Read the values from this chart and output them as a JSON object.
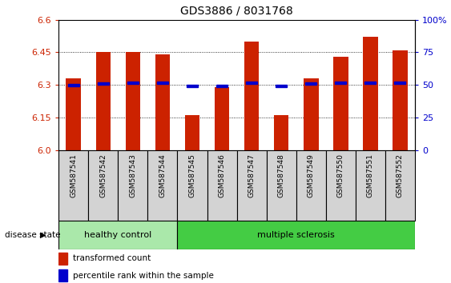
{
  "title": "GDS3886 / 8031768",
  "samples": [
    "GSM587541",
    "GSM587542",
    "GSM587543",
    "GSM587544",
    "GSM587545",
    "GSM587546",
    "GSM587547",
    "GSM587548",
    "GSM587549",
    "GSM587550",
    "GSM587551",
    "GSM587552"
  ],
  "red_values": [
    6.33,
    6.45,
    6.45,
    6.44,
    6.16,
    6.29,
    6.5,
    6.16,
    6.33,
    6.43,
    6.52,
    6.46
  ],
  "blue_values": [
    6.3,
    6.305,
    6.31,
    6.31,
    6.295,
    6.295,
    6.31,
    6.295,
    6.305,
    6.31,
    6.31,
    6.31
  ],
  "y_min": 6.0,
  "y_max": 6.6,
  "y_ticks": [
    6.0,
    6.15,
    6.3,
    6.45,
    6.6
  ],
  "y_right_ticks": [
    0,
    25,
    50,
    75,
    100
  ],
  "y_right_labels": [
    "0",
    "25",
    "50",
    "75",
    "100%"
  ],
  "healthy_count": 4,
  "healthy_label": "healthy control",
  "ms_label": "multiple sclerosis",
  "disease_state_label": "disease state",
  "legend_red": "transformed count",
  "legend_blue": "percentile rank within the sample",
  "bar_color": "#cc2200",
  "blue_color": "#0000cc",
  "label_bg": "#d3d3d3",
  "healthy_bg": "#aae8aa",
  "ms_bg": "#44cc44",
  "bar_width": 0.5,
  "baseline": 6.0
}
